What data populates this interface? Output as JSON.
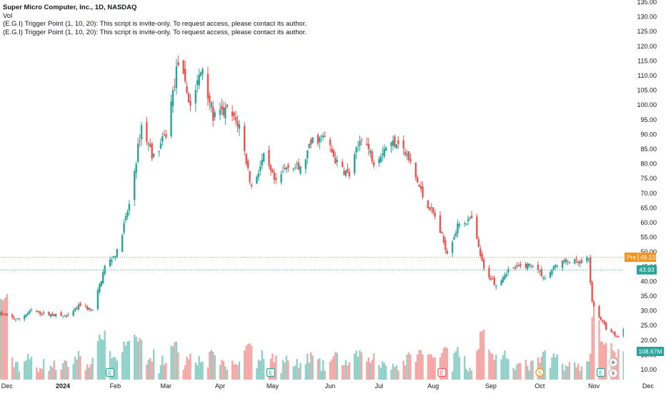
{
  "colors": {
    "up": "#26a69a",
    "down": "#ef5350",
    "up_volume": "#8fd0c8",
    "down_volume": "#f4a7a5",
    "pre_line": "#f7931e",
    "last_line": "#26a69a",
    "axis_text": "#131722",
    "axis_bg": "#ffffff"
  },
  "header": {
    "symbol": "Super Micro Computer, Inc., 1D, NASDAQ",
    "volume_label": "Vol",
    "indicator_1": "(E.G.I) Trigger Point  (1, 10, 20): This script is invite-only. To request access, please contact its author.",
    "indicator_2": "(E.G.I) Trigger Point  (1, 10, 20): This script is invite-only. To request access, please contact its author."
  },
  "price_axis": {
    "ticks": [
      "10.00",
      "15.00",
      "20.00",
      "25.00",
      "30.00",
      "35.00",
      "40.00",
      "45.00",
      "50.00",
      "55.00",
      "60.00",
      "65.00",
      "70.00",
      "75.00",
      "80.00",
      "85.00",
      "90.00",
      "95.00",
      "100.00",
      "105.00",
      "110.00",
      "115.00",
      "120.00",
      "125.00",
      "130.00",
      "135.00"
    ],
    "pre_label": "Pre",
    "pre_value": "48.23",
    "last_value": "43.93",
    "volume_value": "108.67M"
  },
  "time_axis": {
    "ticks": [
      "Dec",
      "2024",
      "Feb",
      "Mar",
      "Apr",
      "May",
      "Jun",
      "Jul",
      "Aug",
      "Sep",
      "Oct",
      "Nov",
      "Dec"
    ]
  },
  "chart_data": {
    "type": "candlestick",
    "title": "Super Micro Computer, Inc., 1D, NASDAQ",
    "ylim": [
      8,
      136
    ],
    "y_scale": "linear",
    "grid": false,
    "pre_market_price": 48.23,
    "last_price": 43.93,
    "last_volume": "108.67M",
    "event_markers": [
      {
        "date": "2024-01-29",
        "label": "E"
      },
      {
        "date": "2024-04-30",
        "label": "E"
      },
      {
        "date": "2024-08-06",
        "label": "E"
      },
      {
        "date": "2024-10-01",
        "label": "S"
      },
      {
        "date": "2024-11-05",
        "label": "E"
      }
    ],
    "anchors": [
      [
        "2023-11-27",
        29
      ],
      [
        "2023-12-07",
        27
      ],
      [
        "2023-12-15",
        30
      ],
      [
        "2023-12-22",
        29
      ],
      [
        "2024-01-05",
        28
      ],
      [
        "2024-01-12",
        32
      ],
      [
        "2024-01-19",
        30
      ],
      [
        "2024-01-26",
        45
      ],
      [
        "2024-02-02",
        50
      ],
      [
        "2024-02-09",
        66
      ],
      [
        "2024-02-16",
        93
      ],
      [
        "2024-02-23",
        82
      ],
      [
        "2024-03-01",
        90
      ],
      [
        "2024-03-08",
        115
      ],
      [
        "2024-03-15",
        100
      ],
      [
        "2024-03-22",
        113
      ],
      [
        "2024-03-28",
        96
      ],
      [
        "2024-04-05",
        98
      ],
      [
        "2024-04-12",
        93
      ],
      [
        "2024-04-19",
        72
      ],
      [
        "2024-04-26",
        82
      ],
      [
        "2024-05-03",
        73
      ],
      [
        "2024-05-10",
        80
      ],
      [
        "2024-05-17",
        78
      ],
      [
        "2024-05-24",
        88
      ],
      [
        "2024-05-31",
        89
      ],
      [
        "2024-06-07",
        80
      ],
      [
        "2024-06-14",
        76
      ],
      [
        "2024-06-21",
        90
      ],
      [
        "2024-06-28",
        81
      ],
      [
        "2024-07-05",
        86
      ],
      [
        "2024-07-12",
        88
      ],
      [
        "2024-07-19",
        80
      ],
      [
        "2024-07-26",
        69
      ],
      [
        "2024-08-02",
        62
      ],
      [
        "2024-08-09",
        50
      ],
      [
        "2024-08-16",
        60
      ],
      [
        "2024-08-23",
        61
      ],
      [
        "2024-08-30",
        44
      ],
      [
        "2024-09-06",
        39
      ],
      [
        "2024-09-13",
        44
      ],
      [
        "2024-09-20",
        45
      ],
      [
        "2024-09-27",
        46
      ],
      [
        "2024-10-04",
        41
      ],
      [
        "2024-10-11",
        46
      ],
      [
        "2024-10-18",
        47
      ],
      [
        "2024-10-25",
        46
      ],
      [
        "2024-10-29",
        47.5
      ],
      [
        "2024-10-31",
        32.5
      ],
      [
        "2024-11-08",
        24
      ],
      [
        "2024-11-15",
        21
      ],
      [
        "2024-11-22",
        28
      ],
      [
        "2024-11-29",
        36
      ],
      [
        "2024-12-04",
        43.93
      ]
    ]
  }
}
